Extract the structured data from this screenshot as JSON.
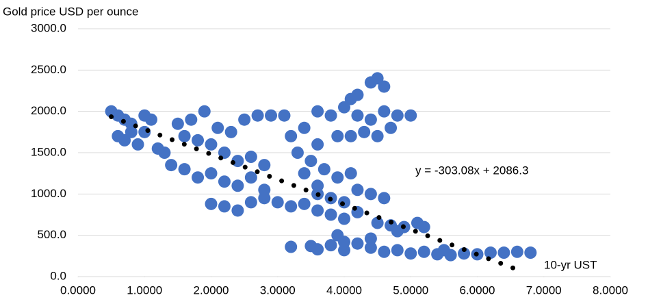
{
  "chart_data": {
    "type": "scatter",
    "y_label": "Gold price USD per ounce",
    "x_label": "10-yr UST",
    "color": "#4472c4",
    "grid": true,
    "xlim": [
      0,
      8
    ],
    "ylim": [
      0,
      3000
    ],
    "xticks": [
      {
        "value": 0,
        "label": "0.0000"
      },
      {
        "value": 1,
        "label": "1.0000"
      },
      {
        "value": 2,
        "label": "2.0000"
      },
      {
        "value": 3,
        "label": "3.0000"
      },
      {
        "value": 4,
        "label": "4.0000"
      },
      {
        "value": 5,
        "label": "5.0000"
      },
      {
        "value": 6,
        "label": "6.0000"
      },
      {
        "value": 7,
        "label": "7.0000"
      },
      {
        "value": 8,
        "label": "8.0000"
      }
    ],
    "yticks": [
      {
        "value": 0,
        "label": "0.0"
      },
      {
        "value": 500,
        "label": "500.0"
      },
      {
        "value": 1000,
        "label": "1000.0"
      },
      {
        "value": 1500,
        "label": "1500.0"
      },
      {
        "value": 2000,
        "label": "2000.0"
      },
      {
        "value": 2500,
        "label": "2500.0"
      },
      {
        "value": 3000,
        "label": "3000.0"
      }
    ],
    "x": [
      0.5,
      0.6,
      0.7,
      0.8,
      0.6,
      0.7,
      0.9,
      1.0,
      1.1,
      1.2,
      1.3,
      0.8,
      1.0,
      1.5,
      1.7,
      1.9,
      2.1,
      2.3,
      2.5,
      2.7,
      2.9,
      3.1,
      1.6,
      1.8,
      2.0,
      2.2,
      2.4,
      2.6,
      2.8,
      1.4,
      1.6,
      1.8,
      2.0,
      2.2,
      2.4,
      2.6,
      2.8,
      2.0,
      2.2,
      2.4,
      2.6,
      2.8,
      3.0,
      3.2,
      3.2,
      3.4,
      3.6,
      3.3,
      3.5,
      3.7,
      3.9,
      4.1,
      3.4,
      3.6,
      3.6,
      3.8,
      4.0,
      4.2,
      4.4,
      4.6,
      4.8,
      5.0,
      4.3,
      4.5,
      4.7,
      3.9,
      4.1,
      4.2,
      4.4,
      4.5,
      4.6,
      4.1,
      3.6,
      3.8,
      4.0,
      4.2,
      4.4,
      4.6,
      3.8,
      4.0,
      4.2,
      3.6,
      3.4,
      4.5,
      4.7,
      4.9,
      5.1,
      5.2,
      4.8,
      3.2,
      3.5,
      3.8,
      4.0,
      4.2,
      4.4,
      4.6,
      4.8,
      5.0,
      5.2,
      5.4,
      5.6,
      5.8,
      6.0,
      6.2,
      6.4,
      6.6,
      6.8,
      3.6,
      4.0,
      4.4,
      3.9,
      5.5
    ],
    "y": [
      2000,
      1950,
      1900,
      1850,
      1700,
      1650,
      1600,
      1750,
      1900,
      1550,
      1500,
      1750,
      1950,
      1850,
      1900,
      2000,
      1800,
      1750,
      1900,
      1950,
      1950,
      1950,
      1700,
      1650,
      1600,
      1500,
      1400,
      1450,
      1350,
      1350,
      1300,
      1200,
      1250,
      1150,
      1100,
      1200,
      1050,
      880,
      850,
      800,
      900,
      950,
      900,
      850,
      1700,
      1800,
      1600,
      1500,
      1400,
      1300,
      1200,
      1250,
      1250,
      1100,
      2000,
      1950,
      2050,
      1950,
      1900,
      2000,
      1950,
      1950,
      1750,
      1700,
      1800,
      1700,
      1700,
      2200,
      2350,
      2400,
      2300,
      2150,
      1000,
      950,
      900,
      1050,
      1000,
      950,
      750,
      700,
      780,
      800,
      880,
      650,
      620,
      600,
      650,
      600,
      550,
      360,
      370,
      380,
      420,
      400,
      350,
      300,
      320,
      280,
      300,
      270,
      260,
      280,
      270,
      290,
      290,
      300,
      290,
      330,
      320,
      460,
      500,
      320
    ],
    "trendline": {
      "slope": -303.08,
      "intercept": 2086.3,
      "x_range": [
        0.5,
        6.65
      ],
      "label": "y = -303.08x + 2086.3"
    }
  }
}
